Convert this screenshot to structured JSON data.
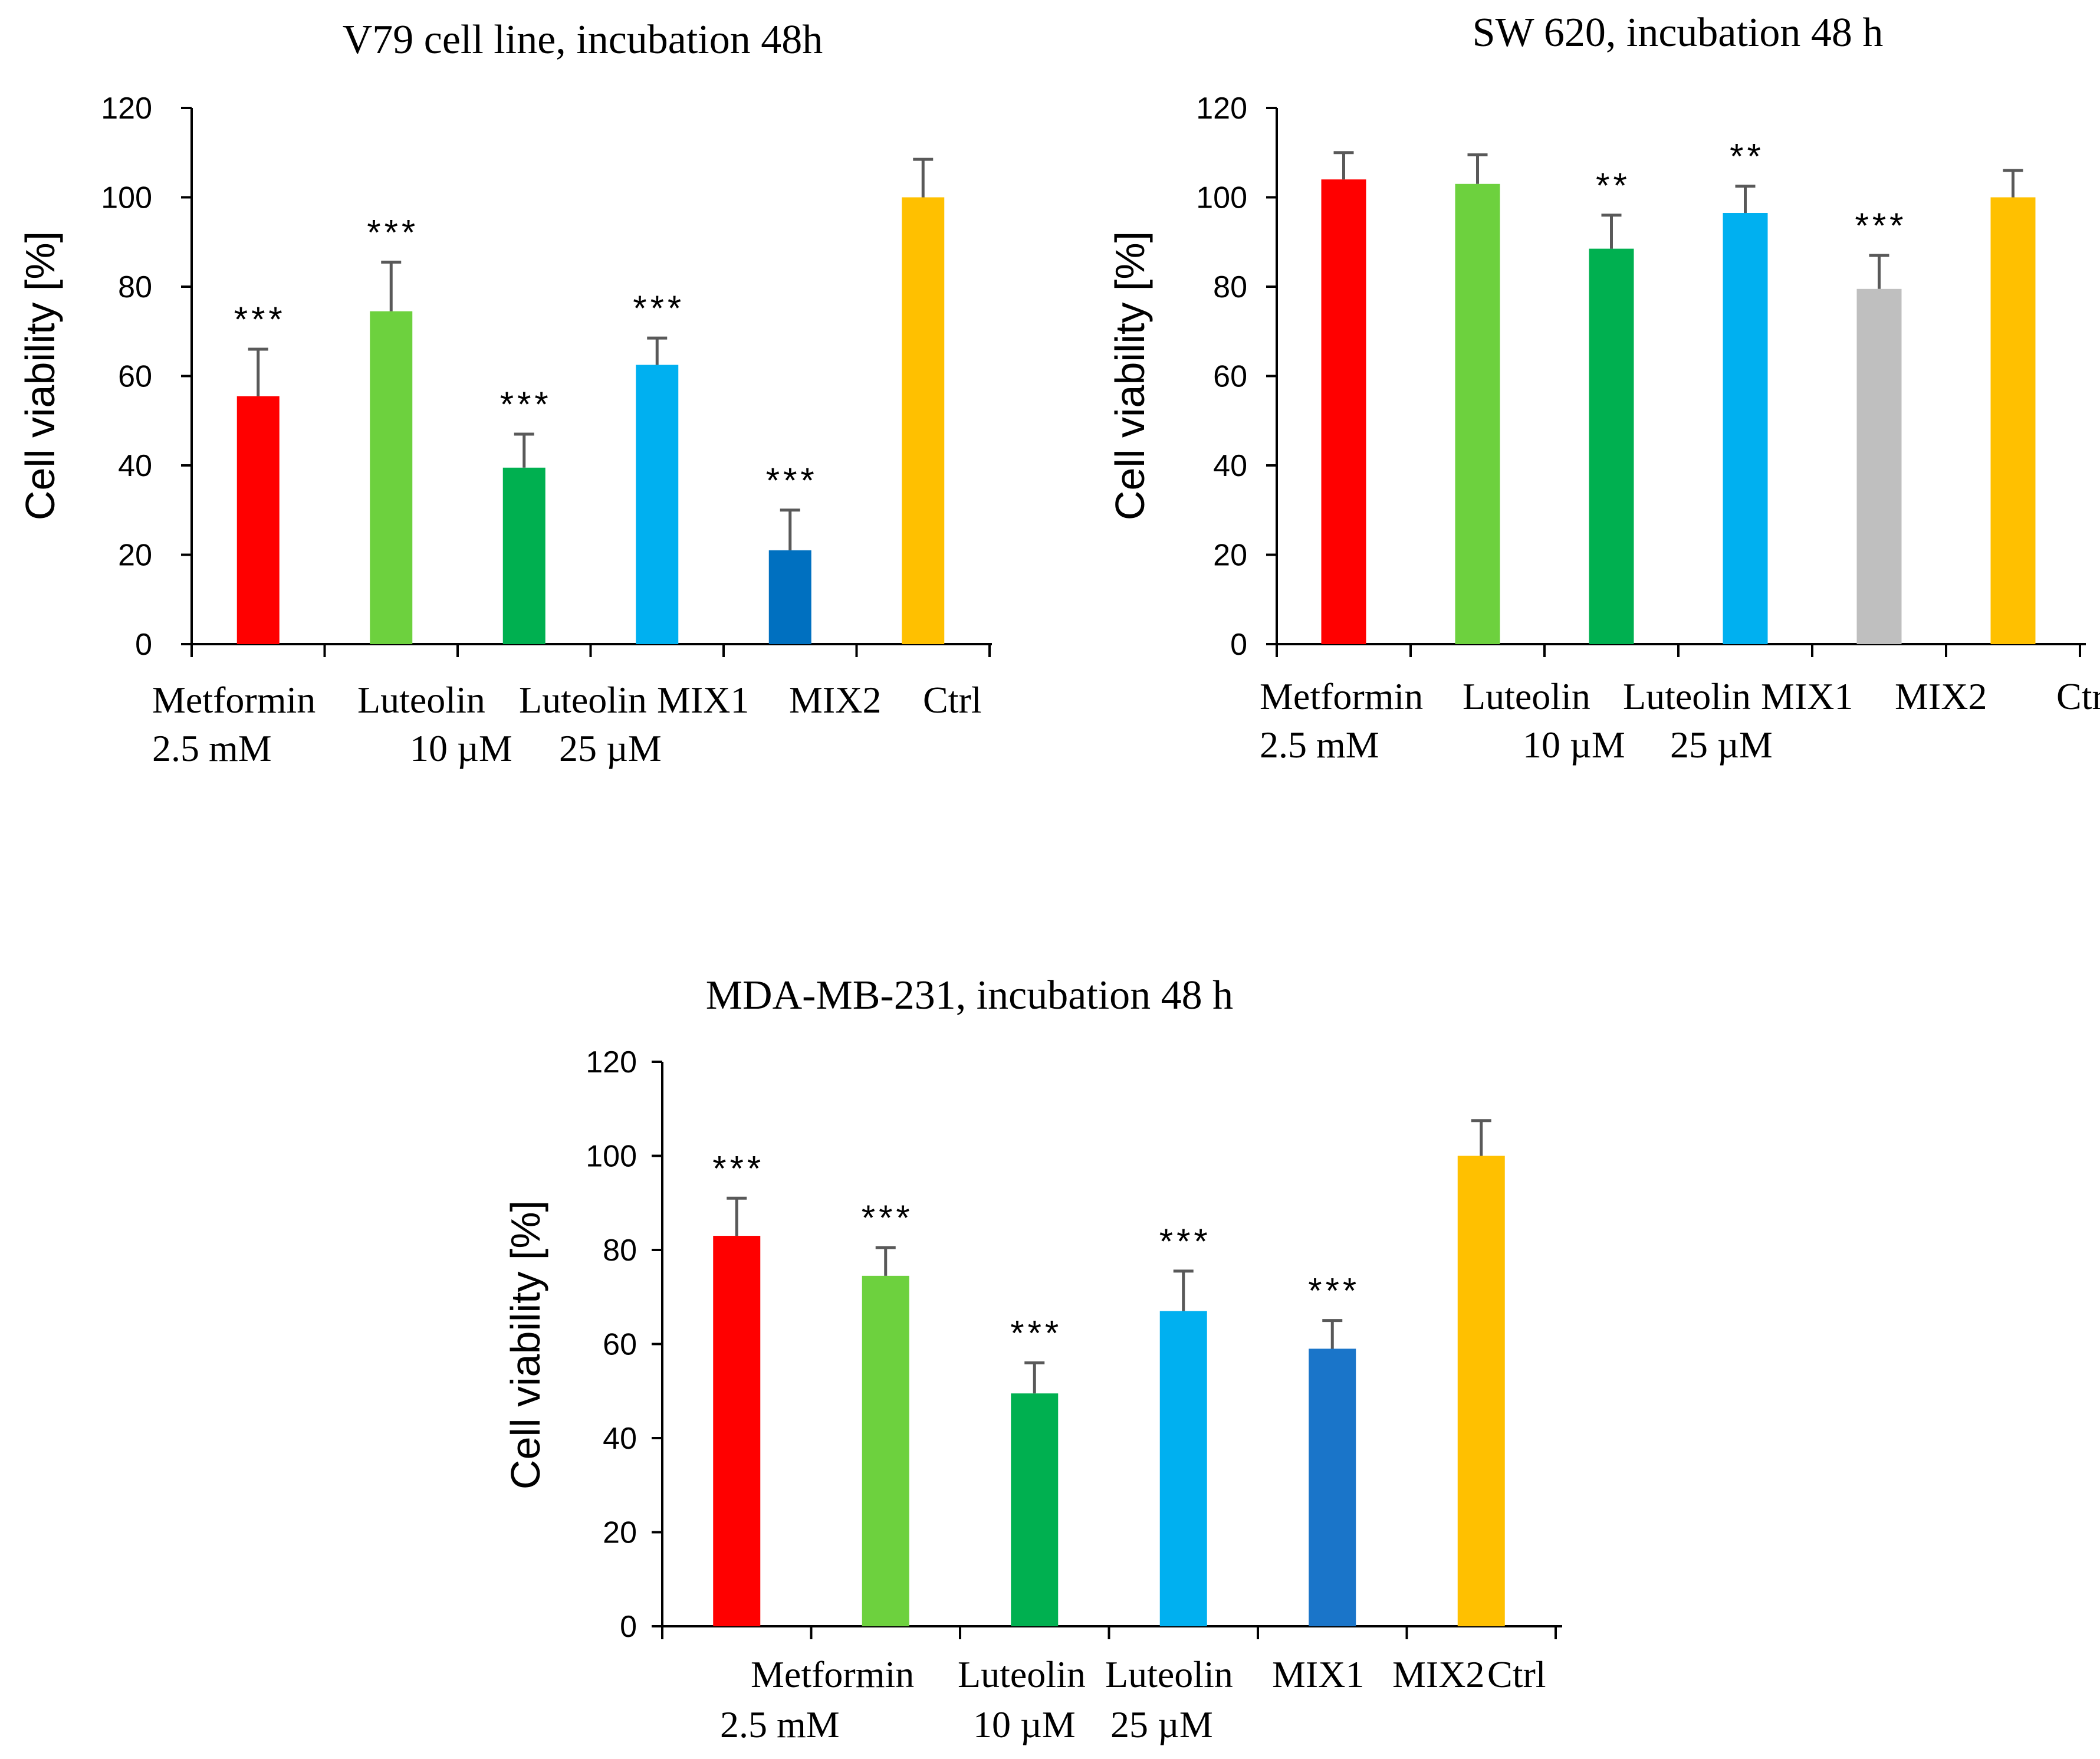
{
  "chart_data": [
    {
      "type": "bar",
      "title": "V79 cell line, incubation 48h",
      "ylabel": "Cell viability [%]",
      "xlabel": "",
      "ylim": [
        0,
        120
      ],
      "yticks": [
        0,
        20,
        40,
        60,
        80,
        100,
        120
      ],
      "categories": [
        "Metformin 2.5 mM",
        "Luteolin 10 µM",
        "Luteolin 25 µM",
        "MIX1",
        "MIX2",
        "Ctrl"
      ],
      "category_label_lines": [
        [
          "Metformin",
          "Luteolin",
          "Luteolin",
          "MIX1",
          "MIX2",
          "Ctrl"
        ],
        [
          "2.5 mM",
          "10 µM",
          "25 µM"
        ]
      ],
      "values": [
        55.5,
        74.5,
        39.5,
        62.5,
        21,
        100
      ],
      "errors": [
        10.5,
        11,
        7.5,
        6,
        9,
        8.5
      ],
      "significance": [
        "***",
        "***",
        "***",
        "***",
        "***",
        ""
      ],
      "colors": [
        "#ff0000",
        "#6dd13e",
        "#00b050",
        "#00b0f0",
        "#0070c0",
        "#ffc000"
      ]
    },
    {
      "type": "bar",
      "title": "SW 620, incubation 48 h",
      "ylabel": "Cell  viability [%]",
      "xlabel": "",
      "ylim": [
        0,
        120
      ],
      "yticks": [
        0,
        20,
        40,
        60,
        80,
        100,
        120
      ],
      "categories": [
        "Metformin 2.5 mM",
        "Luteolin 10 µM",
        "Luteolin 25 µM",
        "MIX1",
        "MIX2",
        "Ctrl"
      ],
      "category_label_lines": [
        [
          "Metformin",
          "Luteolin",
          "Luteolin",
          "MIX1",
          "MIX2",
          "Ctrl"
        ],
        [
          "2.5 mM",
          "10 µM",
          "25 µM"
        ]
      ],
      "values": [
        104,
        103,
        88.5,
        96.5,
        79.5,
        100
      ],
      "errors": [
        6,
        6.5,
        7.5,
        6,
        7.5,
        6
      ],
      "significance": [
        "",
        "",
        "**",
        "**",
        "***",
        ""
      ],
      "colors": [
        "#ff0000",
        "#6dd13e",
        "#00b050",
        "#00b0f0",
        "#bfbfbf",
        "#ffc000"
      ]
    },
    {
      "type": "bar",
      "title": "MDA-MB-231, incubation 48 h",
      "ylabel": "Cell viability [%]",
      "xlabel": "",
      "ylim": [
        0,
        120
      ],
      "yticks": [
        0,
        20,
        40,
        60,
        80,
        100,
        120
      ],
      "categories": [
        "Metformin 2.5 mM",
        "Luteolin 10 µM",
        "Luteolin 25 µM",
        "MIX1",
        "MIX2",
        "Ctrl"
      ],
      "category_label_lines": [
        [
          "Metformin",
          "Luteolin",
          "Luteolin",
          "MIX1",
          "MIX2",
          "Ctrl"
        ],
        [
          "2.5 mM",
          "10 µM",
          "25 µM"
        ]
      ],
      "values": [
        83,
        74.5,
        49.5,
        67,
        59,
        100
      ],
      "errors": [
        8,
        6,
        6.5,
        8.5,
        6,
        7.5
      ],
      "significance": [
        "***",
        "***",
        "***",
        "***",
        "***",
        ""
      ],
      "colors": [
        "#ff0000",
        "#6dd13e",
        "#00b050",
        "#00b0f0",
        "#1a75c9",
        "#ffc000"
      ]
    }
  ]
}
